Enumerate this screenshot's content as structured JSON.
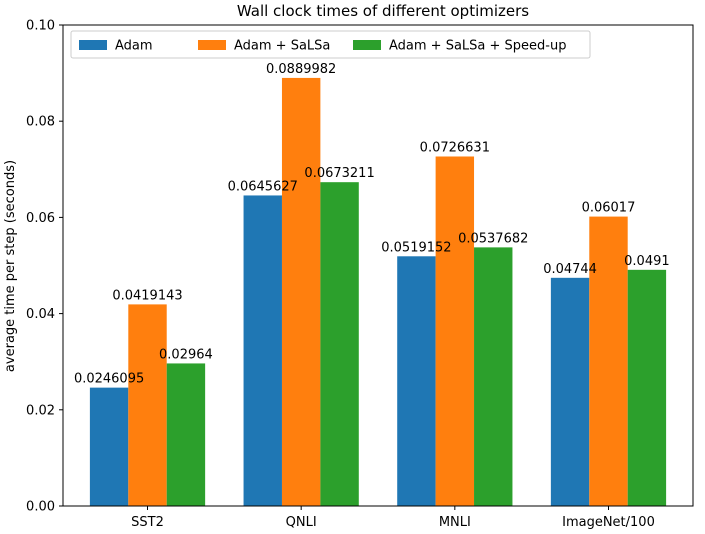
{
  "chart_data": {
    "type": "bar",
    "title": "Wall clock times of different optimizers",
    "xlabel": "",
    "ylabel": "average time per step (seconds)",
    "ylim": [
      0,
      0.1
    ],
    "yticks": [
      "0.00",
      "0.02",
      "0.04",
      "0.06",
      "0.08",
      "0.10"
    ],
    "ytick_values": [
      0,
      0.02,
      0.04,
      0.06,
      0.08,
      0.1
    ],
    "categories": [
      "SST2",
      "QNLI",
      "MNLI",
      "ImageNet/100"
    ],
    "legend_position": "upper-left",
    "grid": false,
    "series": [
      {
        "name": "Adam",
        "color": "#1f77b4",
        "values": [
          0.0246095,
          0.0645627,
          0.0519152,
          0.04744
        ],
        "labels": [
          "0.0246095",
          "0.0645627",
          "0.0519152",
          "0.04744"
        ]
      },
      {
        "name": "Adam + SaLSa",
        "color": "#ff7f0e",
        "values": [
          0.0419143,
          0.0889982,
          0.0726631,
          0.06017
        ],
        "labels": [
          "0.0419143",
          "0.0889982",
          "0.0726631",
          "0.06017"
        ]
      },
      {
        "name": "Adam + SaLSa + Speed-up",
        "color": "#2ca02c",
        "values": [
          0.02964,
          0.0673211,
          0.0537682,
          0.0491
        ],
        "labels": [
          "0.02964",
          "0.0673211",
          "0.0537682",
          "0.0491"
        ]
      }
    ]
  }
}
